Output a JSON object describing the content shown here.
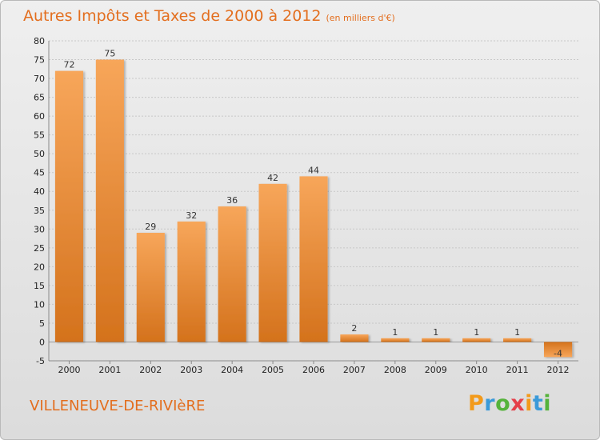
{
  "title": "Autres Impôts et Taxes de 2000 à 2012",
  "subtitle": "(en milliers d'€)",
  "town": "VILLENEUVE-DE-RIVIèRE",
  "brand_letters": [
    "P",
    "r",
    "o",
    "x",
    "i",
    "t",
    "i"
  ],
  "colors": {
    "bar_light": "#f7a65a",
    "bar_dark": "#d4721c",
    "title": "#e36e1e"
  },
  "chart_data": {
    "type": "bar",
    "categories": [
      "2000",
      "2001",
      "2002",
      "2003",
      "2004",
      "2005",
      "2006",
      "2007",
      "2008",
      "2009",
      "2010",
      "2011",
      "2012"
    ],
    "values": [
      72,
      75,
      29,
      32,
      36,
      42,
      44,
      2,
      1,
      1,
      1,
      1,
      -4
    ],
    "ylim": [
      -5,
      80
    ],
    "yticks": [
      -5,
      0,
      5,
      10,
      15,
      20,
      25,
      30,
      35,
      40,
      45,
      50,
      55,
      60,
      65,
      70,
      75,
      80
    ],
    "grid": true
  }
}
